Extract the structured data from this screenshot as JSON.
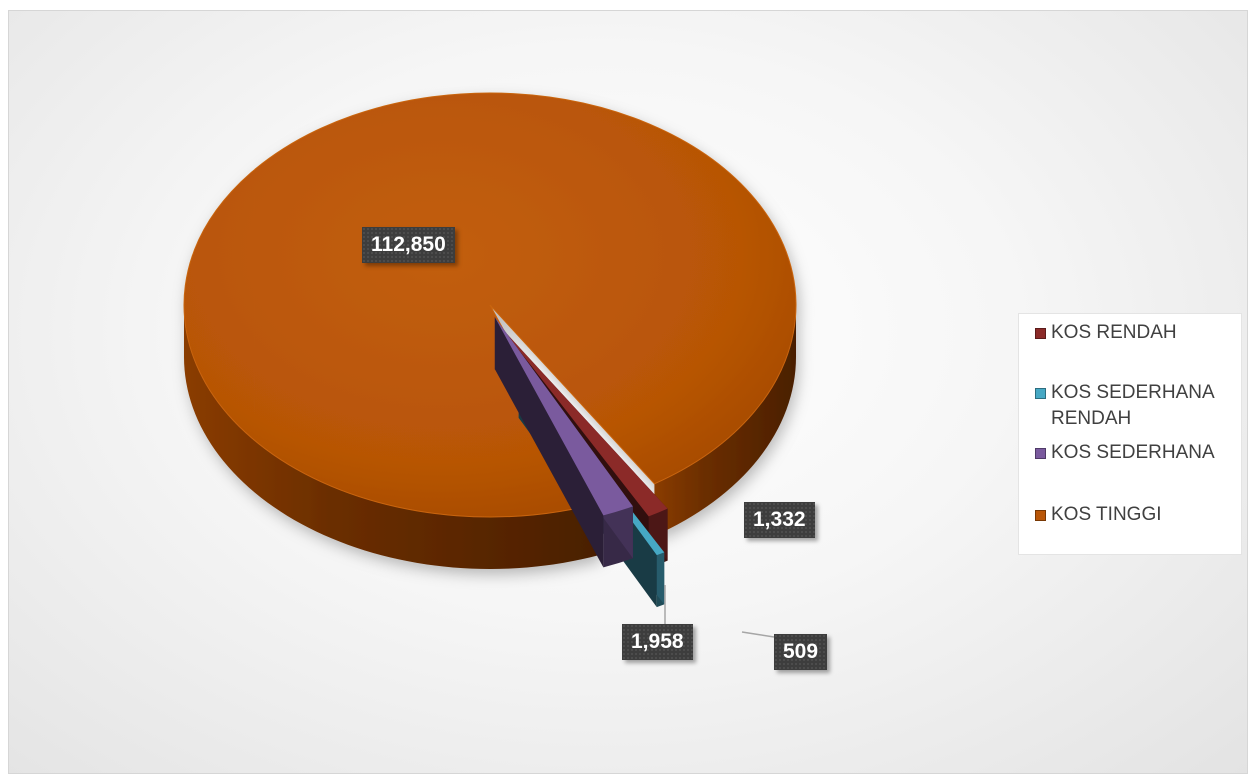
{
  "chart_data": {
    "type": "pie",
    "categories": [
      "KOS RENDAH",
      "KOS SEDERHANA RENDAH",
      "KOS SEDERHANA",
      "KOS TINGGI"
    ],
    "values": [
      1332,
      509,
      1958,
      112850
    ],
    "data_labels": [
      "1,332",
      "509",
      "1,958",
      "112,850"
    ],
    "colors": [
      "#8b2a28",
      "#46a8c4",
      "#7a5a9e",
      "#b95607"
    ],
    "exploded": [
      true,
      true,
      true,
      false
    ],
    "is_3d": true,
    "legend_position": "right"
  },
  "legend": {
    "items": [
      {
        "label": "KOS RENDAH",
        "color": "#8b2a28"
      },
      {
        "label": "KOS SEDERHANA RENDAH",
        "color": "#46a8c4"
      },
      {
        "label": "KOS SEDERHANA",
        "color": "#7a5a9e"
      },
      {
        "label": "KOS TINGGI",
        "color": "#b95607"
      }
    ]
  }
}
